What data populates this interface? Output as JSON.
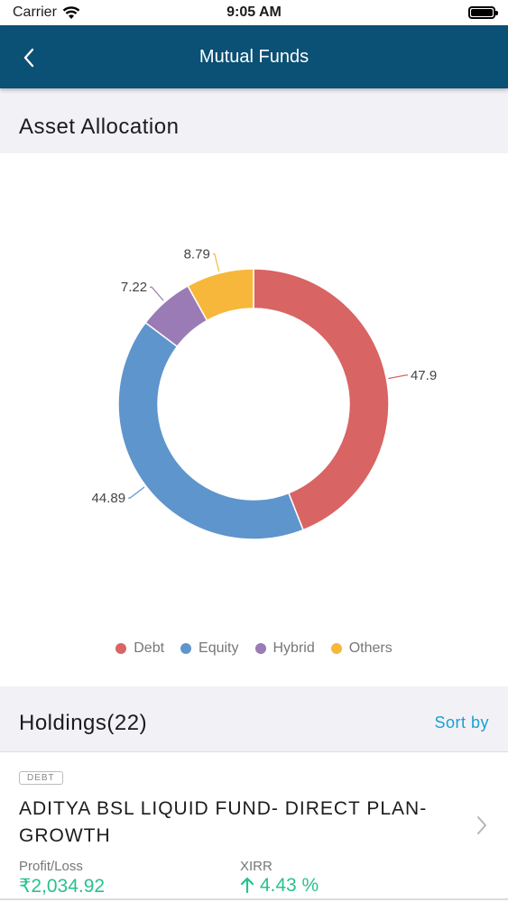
{
  "status_bar": {
    "carrier": "Carrier",
    "time": "9:05 AM"
  },
  "nav": {
    "title": "Mutual Funds",
    "back_icon": "chevron-left-icon"
  },
  "allocation": {
    "heading": "Asset Allocation"
  },
  "chart_data": {
    "type": "pie",
    "variant": "donut",
    "title": "",
    "categories": [
      "Debt",
      "Equity",
      "Hybrid",
      "Others"
    ],
    "values": [
      47.9,
      44.89,
      7.22,
      8.79
    ],
    "value_labels": [
      "47.9",
      "44.89",
      "7.22",
      "8.79"
    ],
    "colors": [
      "#d86464",
      "#5e95cc",
      "#9b7bb5",
      "#f7b73b"
    ],
    "legend_position": "bottom"
  },
  "holdings": {
    "heading": "Holdings(22)",
    "sort_label": "Sort by",
    "items": [
      {
        "tag": "DEBT",
        "name": "ADITYA BSL LIQUID FUND- DIRECT PLAN-GROWTH",
        "profit_label": "Profit/Loss",
        "profit_value": "₹2,034.92",
        "xirr_label": "XIRR",
        "xirr_value": "4.43 %",
        "xirr_icon": "arrow-up-icon",
        "value_color": "#27c28b"
      }
    ]
  }
}
